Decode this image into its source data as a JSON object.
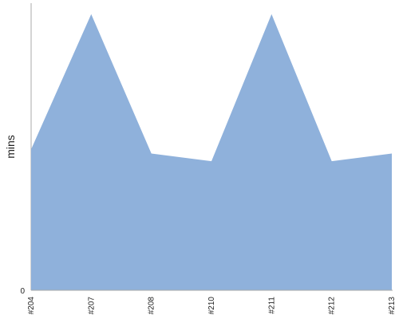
{
  "chart_data": {
    "type": "area",
    "categories": [
      "#204",
      "#207",
      "#208",
      "#210",
      "#211",
      "#212",
      "#213"
    ],
    "series": [
      {
        "values": [
          16.6,
          32.5,
          16.1,
          15.2,
          32.5,
          15.2,
          16.1
        ]
      }
    ],
    "xlabel": "",
    "ylabel": "mins",
    "y_tick_labels": [
      "0"
    ],
    "ylim": [
      0,
      33.8
    ],
    "grid": false,
    "legend": "none",
    "colors": {
      "area": "#8fb1db",
      "axis": "#aaaaaa"
    }
  }
}
